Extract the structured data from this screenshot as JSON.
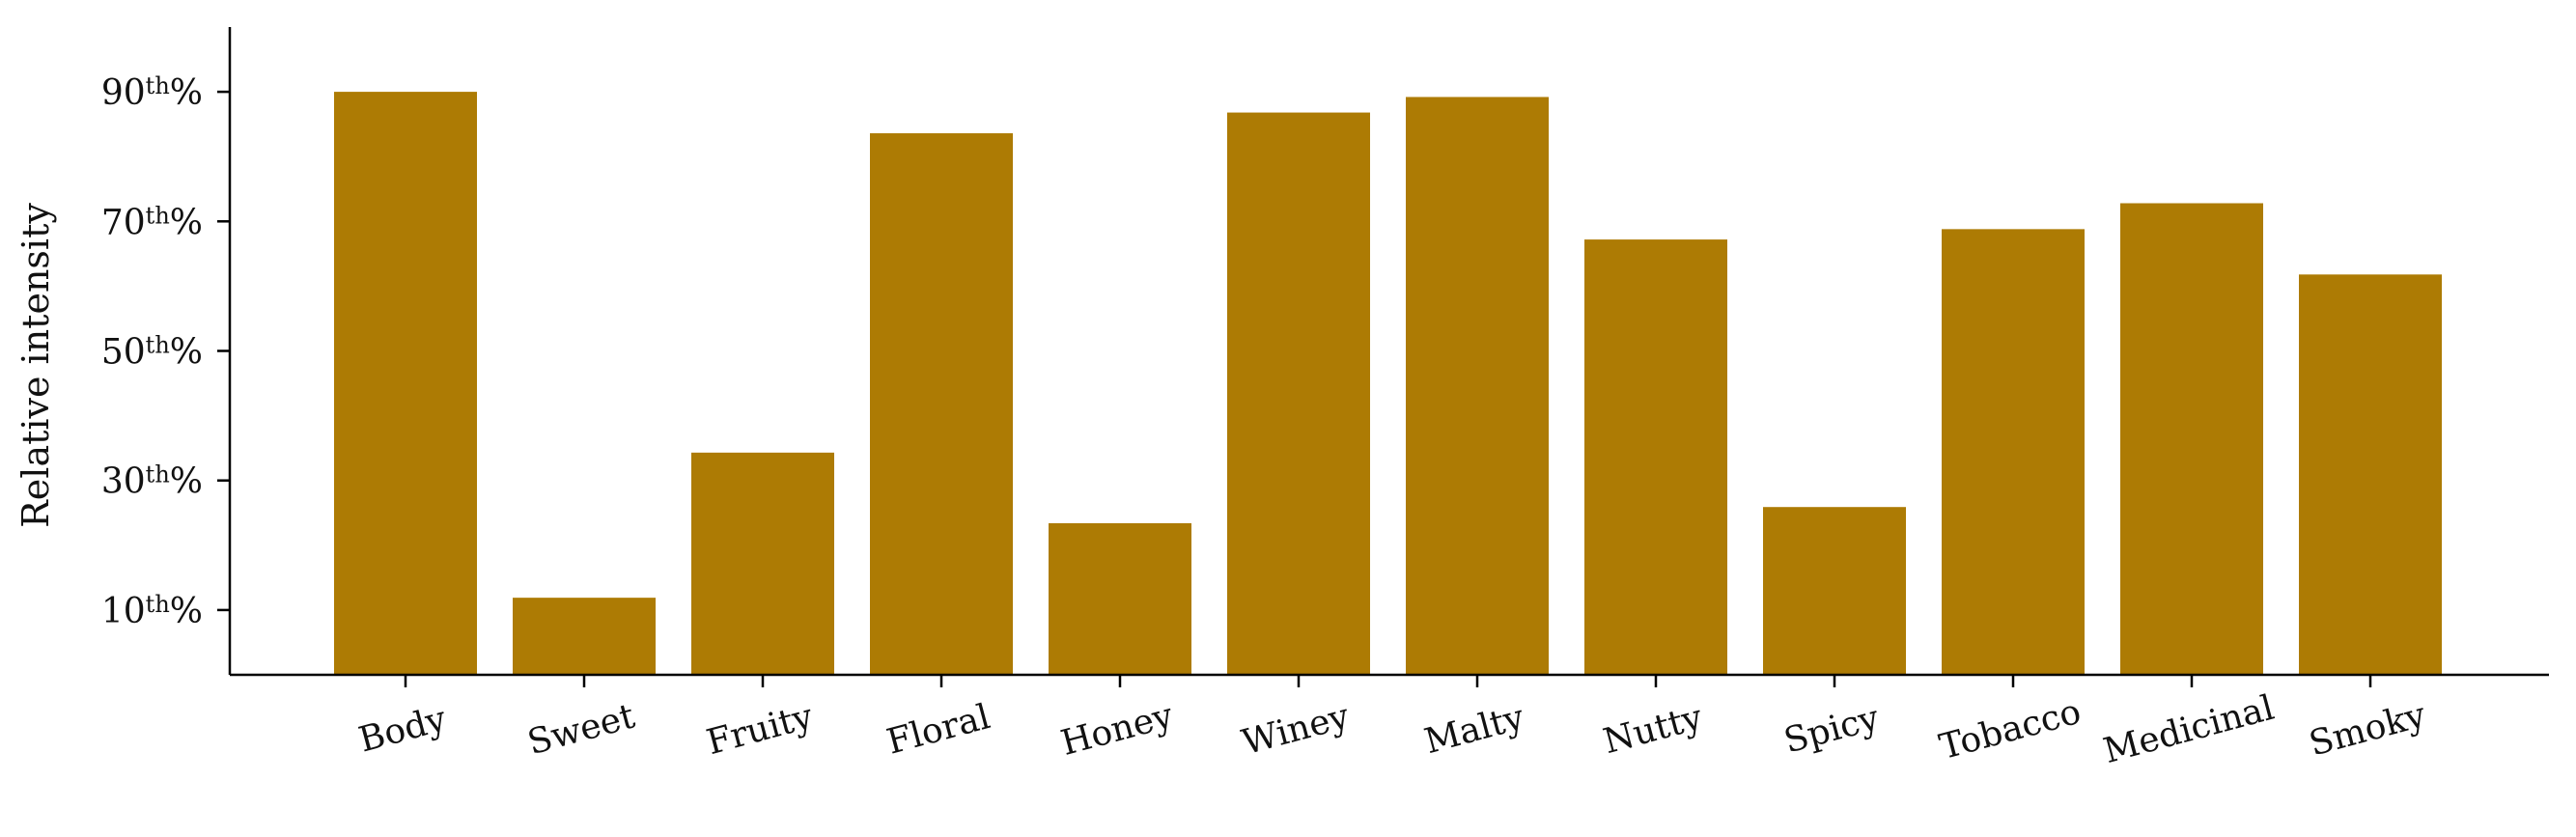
{
  "chart_data": {
    "type": "bar",
    "title": "",
    "xlabel": "",
    "ylabel": "Relative intensity",
    "categories": [
      "Body",
      "Sweet",
      "Fruity",
      "Floral",
      "Honey",
      "Winey",
      "Malty",
      "Nutty",
      "Spicy",
      "Tobacco",
      "Medicinal",
      "Smoky"
    ],
    "values": [
      90,
      11.9,
      34.3,
      83.6,
      23.4,
      86.8,
      89.2,
      67.2,
      25.9,
      68.8,
      72.8,
      61.8
    ],
    "ylim": [
      0,
      100
    ],
    "yticks": [
      {
        "value": 10,
        "num": "10",
        "sup": "th",
        "suffix": "%"
      },
      {
        "value": 30,
        "num": "30",
        "sup": "th",
        "suffix": "%"
      },
      {
        "value": 50,
        "num": "50",
        "sup": "th",
        "suffix": "%"
      },
      {
        "value": 70,
        "num": "70",
        "sup": "th",
        "suffix": "%"
      },
      {
        "value": 90,
        "num": "90",
        "sup": "th",
        "suffix": "%"
      }
    ],
    "bar_color": "#AD7B04",
    "grid": false,
    "legend": "none"
  }
}
